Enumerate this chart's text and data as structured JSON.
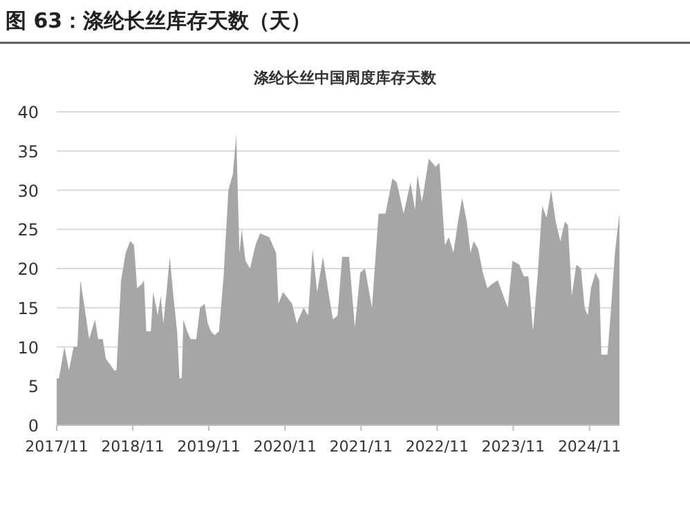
{
  "chart_data": {
    "type": "area",
    "title": "图 63：涤纶长丝库存天数（天）",
    "subtitle": "涤纶长丝中国周度库存天数",
    "x": [
      "2017-11-01",
      "2017-11-12",
      "2017-12-08",
      "2017-12-30",
      "2018-01-21",
      "2018-02-08",
      "2018-02-23",
      "2018-03-15",
      "2018-04-06",
      "2018-05-04",
      "2018-05-19",
      "2018-06-10",
      "2018-06-25",
      "2018-08-04",
      "2018-08-15",
      "2018-09-06",
      "2018-09-28",
      "2018-10-20",
      "2018-11-07",
      "2018-11-22",
      "2018-12-14",
      "2018-12-25",
      "2019-01-05",
      "2019-01-27",
      "2019-02-07",
      "2019-03-01",
      "2019-03-15",
      "2019-03-28",
      "2019-04-12",
      "2019-04-28",
      "2019-05-15",
      "2019-06-02",
      "2019-06-13",
      "2019-06-24",
      "2019-07-02",
      "2019-07-20",
      "2019-08-06",
      "2019-09-02",
      "2019-09-20",
      "2019-10-12",
      "2019-10-27",
      "2019-11-11",
      "2019-11-29",
      "2019-12-20",
      "2020-01-11",
      "2020-02-03",
      "2020-02-24",
      "2020-03-12",
      "2020-03-27",
      "2020-04-07",
      "2020-04-25",
      "2020-05-17",
      "2020-06-12",
      "2020-07-04",
      "2020-08-17",
      "2020-09-19",
      "2020-09-30",
      "2020-10-22",
      "2020-12-05",
      "2020-12-27",
      "2021-01-29",
      "2021-02-20",
      "2021-03-13",
      "2021-04-04",
      "2021-05-02",
      "2021-05-28",
      "2021-06-19",
      "2021-07-11",
      "2021-08-02",
      "2021-09-04",
      "2021-10-02",
      "2021-10-28",
      "2021-11-20",
      "2021-12-23",
      "2022-01-24",
      "2022-02-26",
      "2022-03-31",
      "2022-04-21",
      "2022-05-24",
      "2022-06-26",
      "2022-07-18",
      "2022-07-29",
      "2022-08-20",
      "2022-09-22",
      "2022-10-25",
      "2022-11-12",
      "2022-12-08",
      "2022-12-27",
      "2023-01-18",
      "2023-02-09",
      "2023-03-01",
      "2023-03-23",
      "2023-04-10",
      "2023-04-25",
      "2023-05-17",
      "2023-06-08",
      "2023-06-30",
      "2023-07-21",
      "2023-08-19",
      "2023-09-15",
      "2023-10-06",
      "2023-10-28",
      "2023-11-30",
      "2023-12-22",
      "2024-01-13",
      "2024-02-04",
      "2024-02-26",
      "2024-03-19",
      "2024-04-09",
      "2024-05-01",
      "2024-05-23",
      "2024-06-14",
      "2024-07-06",
      "2024-07-21",
      "2024-08-08",
      "2024-08-30",
      "2024-09-21",
      "2024-10-09",
      "2024-10-24",
      "2024-11-08",
      "2024-11-30",
      "2024-12-18",
      "2024-12-28",
      "2025-01-26",
      "2025-02-10",
      "2025-03-03",
      "2025-03-25"
    ],
    "series": [
      {
        "color": "#a6a6a6",
        "values": [
          6,
          6,
          10,
          7,
          10,
          10,
          18.5,
          15,
          11,
          13.5,
          11,
          11,
          8.5,
          7,
          7,
          18.5,
          22,
          23.5,
          23,
          17.5,
          18,
          18.5,
          12,
          12,
          17,
          14,
          16.5,
          13,
          17,
          21.5,
          16.5,
          12,
          6,
          6,
          13.5,
          12,
          11,
          11,
          15,
          15.5,
          13,
          12,
          11.5,
          12,
          19,
          30,
          32,
          37,
          22,
          25,
          21,
          20,
          23,
          24.5,
          24,
          22,
          15.5,
          17,
          15.5,
          13,
          15,
          14,
          22.5,
          17,
          21.5,
          17,
          13.5,
          14,
          21.5,
          21.5,
          12.5,
          19.5,
          20,
          15,
          27,
          27,
          31.5,
          31,
          27,
          31,
          27.5,
          32,
          28.5,
          34,
          33,
          33.5,
          23,
          24,
          22,
          26,
          29,
          26,
          22,
          23.5,
          22.5,
          19.5,
          17.5,
          18,
          18.5,
          16.5,
          15,
          21,
          20.5,
          19,
          19,
          12,
          19,
          28,
          26.5,
          30,
          26,
          23.5,
          26,
          25.5,
          16.5,
          20.5,
          20,
          15,
          14,
          17.5,
          19.5,
          18.5,
          9,
          9,
          14,
          22,
          27
        ]
      }
    ],
    "xlim": [
      "2017-11-01",
      "2025-03-25"
    ],
    "xticks": [
      {
        "value": "2017-11-01",
        "label": "2017/11"
      },
      {
        "value": "2018-11-01",
        "label": "2018/11"
      },
      {
        "value": "2019-11-01",
        "label": "2019/11"
      },
      {
        "value": "2020-11-01",
        "label": "2020/11"
      },
      {
        "value": "2021-11-01",
        "label": "2021/11"
      },
      {
        "value": "2022-11-01",
        "label": "2022/11"
      },
      {
        "value": "2023-11-01",
        "label": "2023/11"
      },
      {
        "value": "2024-11-01",
        "label": "2024/11"
      }
    ],
    "ylim": [
      0,
      40
    ],
    "yticks": [
      0,
      5,
      10,
      15,
      20,
      25,
      30,
      35,
      40
    ],
    "grid": "y"
  }
}
